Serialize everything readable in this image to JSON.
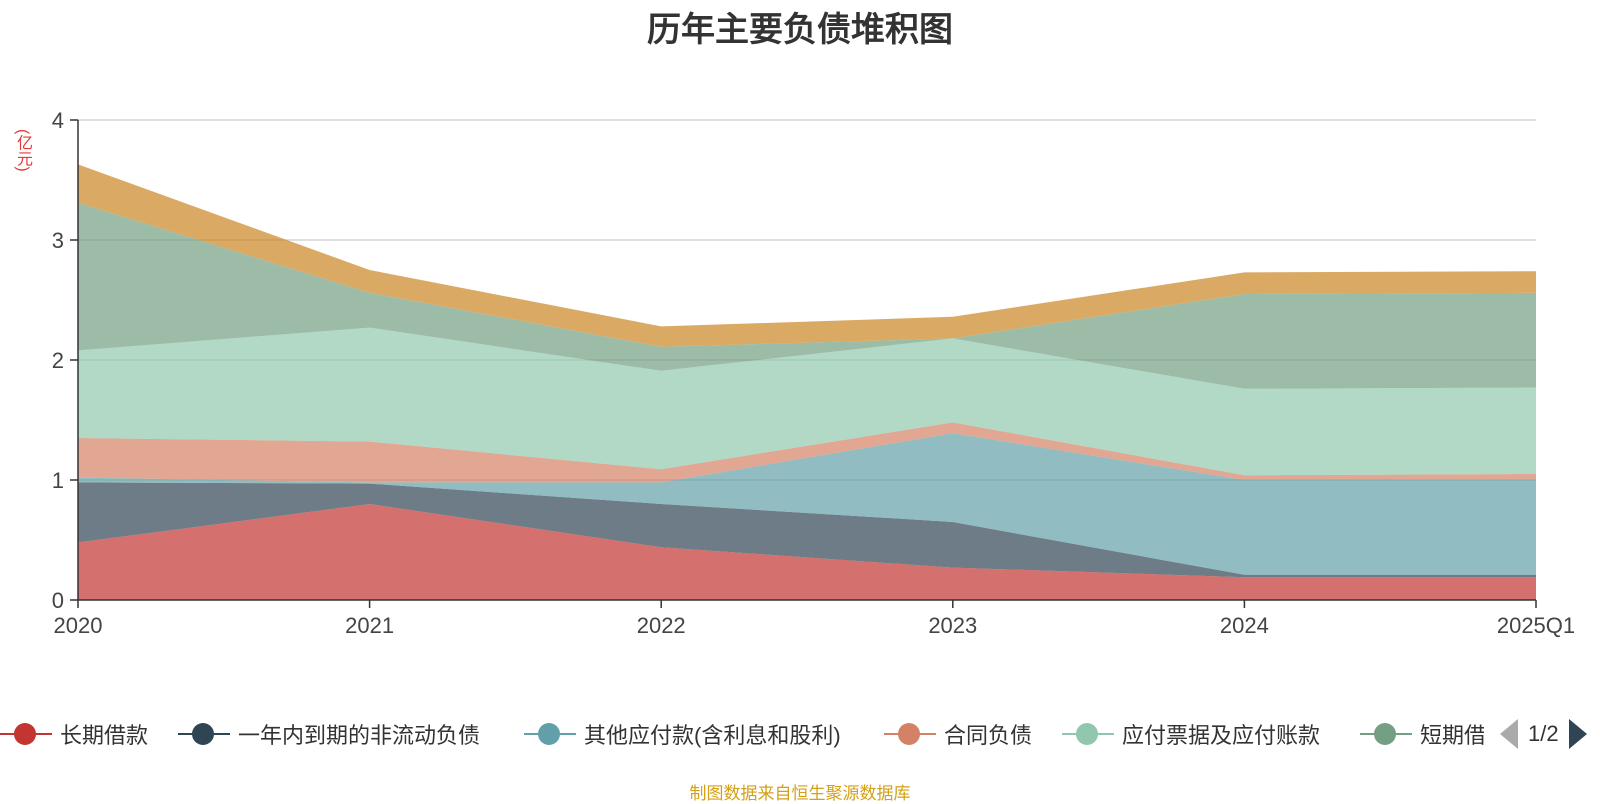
{
  "chart_data": {
    "type": "area",
    "stacked": true,
    "title": "历年主要负债堆积图",
    "unit_label": "(亿元)",
    "categories": [
      "2020",
      "2021",
      "2022",
      "2023",
      "2024",
      "2025Q1"
    ],
    "ylim": [
      0,
      4
    ],
    "y_ticks": [
      "0",
      "1",
      "2",
      "3",
      "4"
    ],
    "grid": true,
    "legend_position": "bottom",
    "series": [
      {
        "name": "长期借款",
        "color": "#c23531",
        "values": [
          0.48,
          0.8,
          0.44,
          0.27,
          0.19,
          0.19
        ]
      },
      {
        "name": "一年内到期的非流动负债",
        "color": "#2f4554",
        "values": [
          0.5,
          0.17,
          0.36,
          0.38,
          0.02,
          0.02
        ]
      },
      {
        "name": "其他应付款(含利息和股利)",
        "color": "#61a0a8",
        "values": [
          0.04,
          0.01,
          0.18,
          0.74,
          0.79,
          0.79
        ]
      },
      {
        "name": "合同负债",
        "color": "#d48265",
        "values": [
          0.33,
          0.34,
          0.11,
          0.09,
          0.04,
          0.05
        ]
      },
      {
        "name": "应付票据及应付账款",
        "color": "#91c7ae",
        "values": [
          0.73,
          0.95,
          0.82,
          0.7,
          0.72,
          0.72
        ]
      },
      {
        "name": "短期借款",
        "color": "#749f83",
        "values": [
          1.23,
          0.29,
          0.2,
          0.0,
          0.79,
          0.79
        ]
      },
      {
        "name": "",
        "color": "#ca8622",
        "values": [
          0.32,
          0.19,
          0.17,
          0.18,
          0.18,
          0.18
        ]
      }
    ]
  },
  "legend": {
    "page_text": "1/2"
  },
  "source_note": "制图数据来自恒生聚源数据库"
}
